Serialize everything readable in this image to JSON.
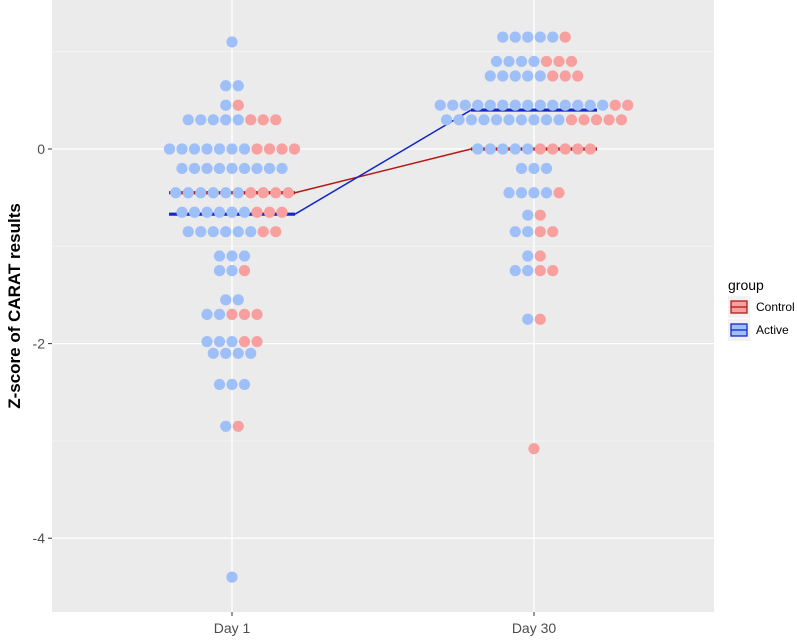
{
  "chart_data": {
    "type": "scatter",
    "title": "",
    "xlabel": "",
    "ylabel": "Z-score of CARAT results",
    "categories": [
      "Day 1",
      "Day 30"
    ],
    "y_ticks": [
      {
        "value": 0,
        "label": "0"
      },
      {
        "value": -2,
        "label": "-2"
      },
      {
        "value": -4,
        "label": "-4"
      }
    ],
    "ylim": [
      -4.75,
      1.35
    ],
    "grid": true,
    "legend": {
      "title": "group",
      "placement": "right"
    },
    "series": [
      {
        "name": "Control",
        "color": "#f8a0a0",
        "line_color": "#b21a1a",
        "means": [
          -0.45,
          0.0
        ],
        "points": {
          "Day 1": [
            {
              "y": 0.45,
              "n": 1
            },
            {
              "y": 0.3,
              "n": 3
            },
            {
              "y": 0.0,
              "n": 4
            },
            {
              "y": -0.45,
              "n": 4
            },
            {
              "y": -0.65,
              "n": 3
            },
            {
              "y": -0.85,
              "n": 2
            },
            {
              "y": -1.25,
              "n": 1
            },
            {
              "y": -1.7,
              "n": 3
            },
            {
              "y": -1.98,
              "n": 2
            },
            {
              "y": -2.85,
              "n": 1
            }
          ],
          "Day 30": [
            {
              "y": 1.15,
              "n": 1
            },
            {
              "y": 0.9,
              "n": 3
            },
            {
              "y": 0.75,
              "n": 3
            },
            {
              "y": 0.45,
              "n": 2
            },
            {
              "y": 0.3,
              "n": 5
            },
            {
              "y": 0.0,
              "n": 5
            },
            {
              "y": -0.45,
              "n": 1
            },
            {
              "y": -0.68,
              "n": 1
            },
            {
              "y": -0.85,
              "n": 2
            },
            {
              "y": -1.1,
              "n": 1
            },
            {
              "y": -1.25,
              "n": 2
            },
            {
              "y": -1.75,
              "n": 1
            },
            {
              "y": -3.08,
              "n": 1
            }
          ]
        }
      },
      {
        "name": "Active",
        "color": "#9fbff8",
        "line_color": "#1428c8",
        "means": [
          -0.67,
          0.4
        ],
        "points": {
          "Day 1": [
            {
              "y": 1.1,
              "n": 1
            },
            {
              "y": 0.65,
              "n": 2
            },
            {
              "y": 0.45,
              "n": 1
            },
            {
              "y": 0.3,
              "n": 5
            },
            {
              "y": 0.0,
              "n": 7
            },
            {
              "y": -0.2,
              "n": 9
            },
            {
              "y": -0.45,
              "n": 6
            },
            {
              "y": -0.65,
              "n": 6
            },
            {
              "y": -0.85,
              "n": 6
            },
            {
              "y": -1.1,
              "n": 3
            },
            {
              "y": -1.25,
              "n": 2
            },
            {
              "y": -1.55,
              "n": 2
            },
            {
              "y": -1.7,
              "n": 2
            },
            {
              "y": -1.98,
              "n": 3
            },
            {
              "y": -2.1,
              "n": 4
            },
            {
              "y": -2.42,
              "n": 3
            },
            {
              "y": -2.85,
              "n": 1
            },
            {
              "y": -4.4,
              "n": 1
            }
          ],
          "Day 30": [
            {
              "y": 1.15,
              "n": 5
            },
            {
              "y": 0.9,
              "n": 4
            },
            {
              "y": 0.75,
              "n": 5
            },
            {
              "y": 0.45,
              "n": 14
            },
            {
              "y": 0.3,
              "n": 10
            },
            {
              "y": 0.0,
              "n": 5
            },
            {
              "y": -0.2,
              "n": 3
            },
            {
              "y": -0.45,
              "n": 4
            },
            {
              "y": -0.68,
              "n": 1
            },
            {
              "y": -0.85,
              "n": 2
            },
            {
              "y": -1.1,
              "n": 1
            },
            {
              "y": -1.25,
              "n": 2
            },
            {
              "y": -1.75,
              "n": 1
            }
          ]
        }
      }
    ]
  }
}
